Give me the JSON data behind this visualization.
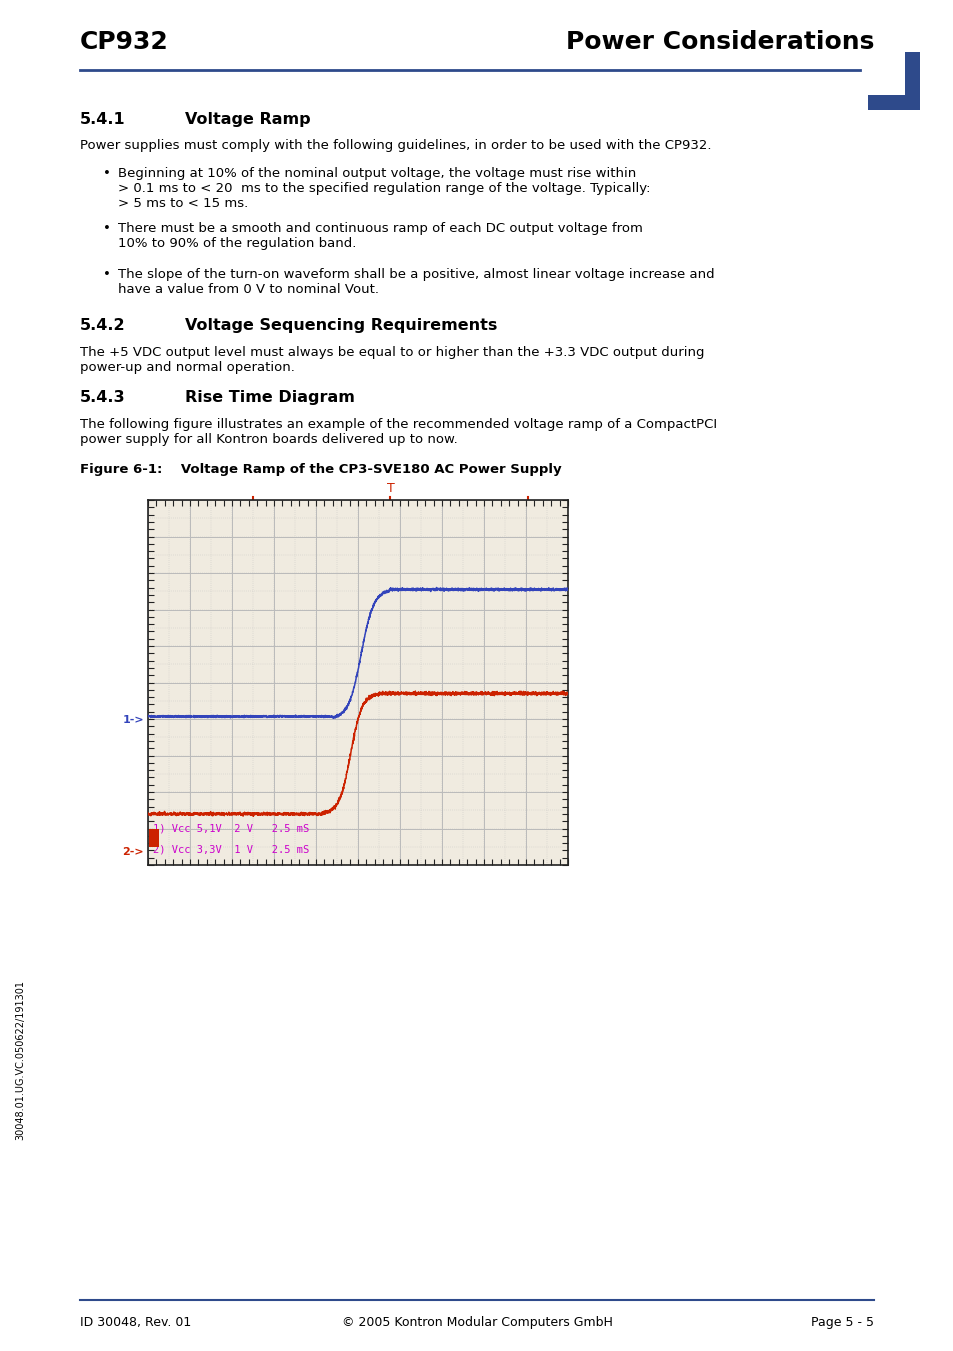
{
  "page_title_left": "CP932",
  "page_title_right": "Power Considerations",
  "header_line_color": "#2E4A8B",
  "decorator_color": "#2E4A8B",
  "body_text_541": "Power supplies must comply with the following guidelines, in order to be used with the CP932.",
  "bullet_541_1": "Beginning at 10% of the nominal output voltage, the voltage must rise within\n> 0.1 ms to < 20  ms to the specified regulation range of the voltage. Typically:\n> 5 ms to < 15 ms.",
  "bullet_541_2": "There must be a smooth and continuous ramp of each DC output voltage from\n10% to 90% of the regulation band.",
  "bullet_541_3": "The slope of the turn-on waveform shall be a positive, almost linear voltage increase and\nhave a value from 0 V to nominal Vout.",
  "body_text_542": "The +5 VDC output level must always be equal to or higher than the +3.3 VDC output during\npower-up and normal operation.",
  "body_text_543": "The following figure illustrates an example of the recommended voltage ramp of a CompactPCI\npower supply for all Kontron boards delivered up to now.",
  "figure_caption": "Figure 6-1:    Voltage Ramp of the CP3-SVE180 AC Power Supply",
  "osc_bg_color": "#f0ebe0",
  "osc_grid_color": "#bbbbbb",
  "osc_tick_color": "#222222",
  "blue_line_color": "#3344bb",
  "red_line_color": "#cc2200",
  "bracket_color": "#cc2200",
  "label_color": "#cc00cc",
  "legend_text_1": "1) Vcc 5,1V  2 V   2.5 mS",
  "legend_text_2": "2) Vcc 3,3V  1 V   2.5 mS",
  "footer_left": "ID 30048, Rev. 01",
  "footer_center": "© 2005 Kontron Modular Computers GmbH",
  "footer_right": "Page 5 - 5",
  "sidebar_text": "30048.01.UG.VC.050622/191301",
  "footer_line_color": "#2E4A8B"
}
